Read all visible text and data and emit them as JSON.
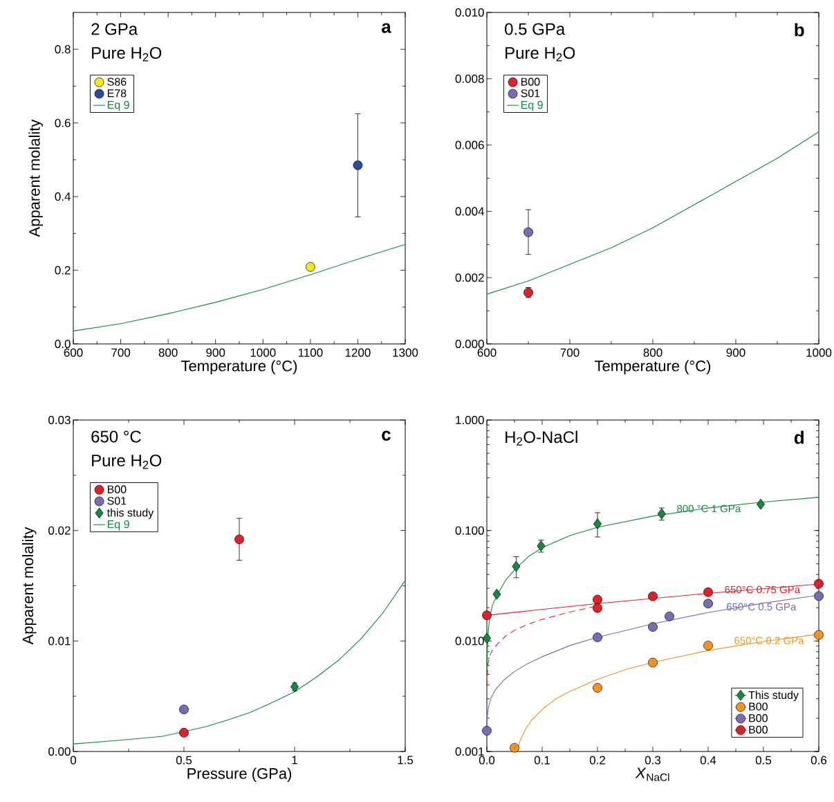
{
  "chart_data": [
    {
      "type": "scatter",
      "xlabel": "Temperature (°C)",
      "ylabel": "Apparent molality",
      "annotations": [
        "2 GPa",
        "Pure H$_{2}$O",
        "a"
      ],
      "xlim": [
        600,
        1300
      ],
      "xticks": [
        600,
        700,
        800,
        900,
        1000,
        1100,
        1200,
        1300
      ],
      "ylim": [
        0,
        0.9
      ],
      "yticks": [
        {
          "value": 0,
          "label": "0.0"
        },
        0.2,
        0.4,
        0.6,
        0.8
      ],
      "legend": "top left",
      "series": [
        {
          "name": "S86",
          "color": "#f6e91b",
          "marker": "circle",
          "x": [
            1100
          ],
          "values": [
            0.209
          ]
        },
        {
          "name": "E78",
          "color": "#2e4b9b",
          "marker": "circle",
          "x": [
            1200
          ],
          "values": [
            0.485
          ],
          "errors": [
            [
              0.345,
              0.625
            ]
          ]
        },
        {
          "name": "Eq 9",
          "type": "line",
          "color": "#138a3e",
          "x": [
            600,
            700,
            800,
            900,
            1000,
            1100,
            1200,
            1300
          ],
          "values": [
            0.035,
            0.055,
            0.082,
            0.113,
            0.148,
            0.188,
            0.23,
            0.27
          ]
        }
      ]
    },
    {
      "type": "scatter",
      "xlabel": "Temperature (°C)",
      "annotations": [
        "0.5 GPa",
        "Pure H$_{2}$O",
        "b"
      ],
      "xlim": [
        600,
        1000
      ],
      "xticks": [
        600,
        700,
        800,
        900,
        1000
      ],
      "ylim": [
        0,
        0.01
      ],
      "yticks": [
        {
          "value": 0,
          "label": "0.000"
        },
        {
          "value": 0.002,
          "label": "0.002"
        },
        {
          "value": 0.004,
          "label": "0.004"
        },
        {
          "value": 0.006,
          "label": "0.006"
        },
        {
          "value": 0.008,
          "label": "0.008"
        },
        {
          "value": 0.01,
          "label": "0.010"
        }
      ],
      "legend": "top left",
      "series": [
        {
          "name": "B00",
          "color": "#e2202a",
          "marker": "circle",
          "x": [
            650
          ],
          "values": [
            0.00155
          ],
          "errors": [
            [
              0.0014,
              0.0017
            ]
          ]
        },
        {
          "name": "S01",
          "color": "#7b6bb5",
          "marker": "circle",
          "x": [
            650
          ],
          "values": [
            0.00337
          ],
          "errors": [
            [
              0.0027,
              0.00405
            ]
          ]
        },
        {
          "name": "Eq 9",
          "type": "line",
          "color": "#138a3e",
          "x": [
            600,
            650,
            700,
            750,
            800,
            850,
            900,
            950,
            1000
          ],
          "values": [
            0.0015,
            0.0019,
            0.0024,
            0.0029,
            0.0035,
            0.0042,
            0.0049,
            0.0056,
            0.0064
          ]
        }
      ]
    },
    {
      "type": "scatter",
      "xlabel": "Pressure (GPa)",
      "ylabel": "Apparent molality",
      "annotations": [
        "650 °C",
        "Pure H$_{2}$O",
        "c"
      ],
      "xlim": [
        0,
        1.5
      ],
      "xticks": [
        0,
        0.5,
        1,
        1.5
      ],
      "ylim": [
        0,
        0.03
      ],
      "yticks": [
        {
          "value": 0,
          "label": "0.00"
        },
        0.01,
        0.02,
        0.03
      ],
      "legend": "top left",
      "series": [
        {
          "name": "B00",
          "color": "#e2202a",
          "marker": "circle",
          "x": [
            0.5,
            0.75
          ],
          "values": [
            0.0017,
            0.0192
          ],
          "errors": [
            null,
            [
              0.0173,
              0.0211
            ]
          ]
        },
        {
          "name": "S01",
          "color": "#7b6bb5",
          "marker": "circle",
          "x": [
            0.5
          ],
          "values": [
            0.0038
          ]
        },
        {
          "name": "this study",
          "color": "#138a3e",
          "marker": "diamond",
          "x": [
            1.0
          ],
          "values": [
            0.00585
          ],
          "errors": [
            [
              0.0055,
              0.0062
            ]
          ]
        },
        {
          "name": "Eq 9",
          "type": "line",
          "color": "#138a3e",
          "x": [
            0,
            0.2,
            0.4,
            0.5,
            0.6,
            0.7,
            0.8,
            0.9,
            1.0,
            1.1,
            1.2,
            1.3,
            1.4,
            1.5
          ],
          "values": [
            0.00068,
            0.001,
            0.00136,
            0.0018,
            0.00226,
            0.00286,
            0.00354,
            0.00444,
            0.0054,
            0.00675,
            0.00828,
            0.0102,
            0.01257,
            0.01549
          ]
        }
      ]
    },
    {
      "type": "scatter",
      "xlabel": "*X*$_{NaCl}$",
      "log": "y",
      "xlim": [
        0,
        0.6
      ],
      "xticks": [
        {
          "value": 0,
          "label": "0.0"
        },
        0.1,
        0.2,
        0.3,
        0.4,
        0.5,
        0.6
      ],
      "ylim": [
        0.001,
        1
      ],
      "yticks": [
        {
          "value": 0.001,
          "label": "0.001"
        },
        {
          "value": 0.01,
          "label": "0.010"
        },
        {
          "value": 0.1,
          "label": "0.100"
        },
        {
          "value": 1,
          "label": "1.000"
        }
      ],
      "legend": "bottom right",
      "annotations": [
        "H$_{2}$O-NaCl",
        "d",
        {
          "text": "800 °C 1 GPa",
          "x": 0.401,
          "y": 0.158
        },
        {
          "text": "650°C 0.75 GPa",
          "x": 0.498,
          "y": 0.0292
        },
        {
          "text": "650°C 0.5 GPa",
          "x": 0.496,
          "y": 0.0204
        },
        {
          "text": "650°C 0.2 GPa",
          "x": 0.51,
          "y": 0.0101
        }
      ],
      "series": [
        {
          "name": "This study",
          "color": "#138a3e",
          "marker": "diamond",
          "x": [
            0.0,
            0.018,
            0.053,
            0.098,
            0.2,
            0.316,
            0.495
          ],
          "values": [
            0.0106,
            0.0265,
            0.0473,
            0.0726,
            0.115,
            0.1416,
            0.173
          ],
          "errors": [
            null,
            null,
            [
              0.0374,
              0.058
            ],
            [
              0.0637,
              0.0819
            ],
            [
              0.0874,
              0.145
            ],
            [
              0.124,
              0.16
            ],
            null
          ]
        },
        {
          "name": "B00",
          "color": "#f7931e",
          "marker": "circle",
          "x": [
            0.05,
            0.2,
            0.3,
            0.4,
            0.6
          ],
          "values": [
            0.00108,
            0.00377,
            0.00638,
            0.0091,
            0.01135
          ]
        },
        {
          "name": "B00",
          "color": "#7b6bb5",
          "marker": "circle",
          "x": [
            0.0,
            0.2,
            0.3,
            0.33,
            0.4,
            0.6
          ],
          "values": [
            0.00154,
            0.0108,
            0.0134,
            0.0167,
            0.0218,
            0.0255
          ]
        },
        {
          "name": "B00",
          "color": "#e2202a",
          "marker": "circle",
          "x": [
            0.0,
            0.2,
            0.2,
            0.3,
            0.4,
            0.6
          ],
          "values": [
            0.0171,
            0.0237,
            0.0199,
            0.0254,
            0.0277,
            0.033
          ]
        },
        {
          "type": "line",
          "color": "#138a3e",
          "x": [
            0.0,
            0.001,
            0.003,
            0.006,
            0.01,
            0.02,
            0.035,
            0.05,
            0.075,
            0.1,
            0.15,
            0.2,
            0.3,
            0.4,
            0.5,
            0.6
          ],
          "values": [
            0.005,
            0.0085,
            0.013,
            0.017,
            0.021,
            0.027,
            0.036,
            0.044,
            0.058,
            0.07,
            0.09,
            0.107,
            0.135,
            0.16,
            0.181,
            0.2
          ]
        },
        {
          "type": "line",
          "color": "#f7931e",
          "x": [
            0.055,
            0.06,
            0.07,
            0.08,
            0.1,
            0.125,
            0.15,
            0.2,
            0.25,
            0.3,
            0.4,
            0.5,
            0.6
          ],
          "values": [
            0.001,
            0.00125,
            0.0016,
            0.0019,
            0.0024,
            0.003,
            0.0035,
            0.0045,
            0.0055,
            0.0064,
            0.0082,
            0.0099,
            0.0115
          ]
        },
        {
          "type": "line",
          "color": "#7b6bb5",
          "x": [
            0.0,
            0.001,
            0.003,
            0.007,
            0.015,
            0.03,
            0.05,
            0.075,
            0.1,
            0.15,
            0.2,
            0.3,
            0.4,
            0.5,
            0.6
          ],
          "values": [
            0.0016,
            0.0021,
            0.0025,
            0.003,
            0.0036,
            0.0044,
            0.0053,
            0.0063,
            0.0072,
            0.0091,
            0.0108,
            0.0143,
            0.0181,
            0.022,
            0.026
          ]
        },
        {
          "type": "line",
          "color": "#e2202a",
          "x": [
            0.0,
            0.2,
            0.4,
            0.6
          ],
          "values": [
            0.0171,
            0.0218,
            0.027,
            0.0328
          ]
        },
        {
          "type": "line",
          "color": "#e2202a",
          "line_style": "dashed",
          "x": [
            0.0,
            0.002,
            0.005,
            0.01,
            0.02,
            0.035,
            0.05,
            0.075,
            0.1,
            0.15,
            0.2
          ],
          "values": [
            0.0039,
            0.0062,
            0.0073,
            0.0083,
            0.0095,
            0.0112,
            0.0125,
            0.0142,
            0.0157,
            0.0183,
            0.0208
          ]
        }
      ]
    }
  ]
}
